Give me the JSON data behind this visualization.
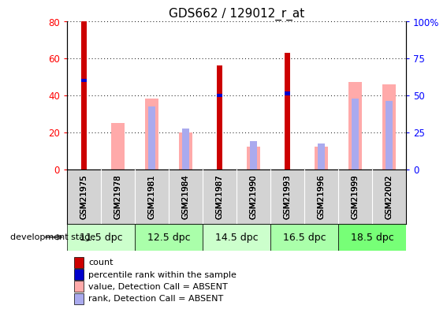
{
  "title": "GDS662 / 129012_r_at",
  "samples": [
    "GSM21975",
    "GSM21978",
    "GSM21981",
    "GSM21984",
    "GSM21987",
    "GSM21990",
    "GSM21993",
    "GSM21996",
    "GSM21999",
    "GSM22002"
  ],
  "count_values": [
    80,
    0,
    0,
    0,
    56,
    0,
    63,
    0,
    0,
    0
  ],
  "percentile_rank": [
    48,
    0,
    0,
    0,
    40,
    0,
    41,
    0,
    0,
    0
  ],
  "absent_value": [
    0,
    25,
    38,
    20,
    0,
    12,
    0,
    12,
    47,
    46
  ],
  "absent_rank": [
    0,
    0,
    34,
    22,
    0,
    15,
    0,
    14,
    38,
    37
  ],
  "dev_stages": [
    {
      "label": "11.5 dpc",
      "color": "#ccffcc"
    },
    {
      "label": "12.5 dpc",
      "color": "#aaffaa"
    },
    {
      "label": "14.5 dpc",
      "color": "#ccffcc"
    },
    {
      "label": "16.5 dpc",
      "color": "#aaffaa"
    },
    {
      "label": "18.5 dpc",
      "color": "#77ff77"
    }
  ],
  "ylim_left": [
    0,
    80
  ],
  "ylim_right": [
    0,
    100
  ],
  "yticks_left": [
    0,
    20,
    40,
    60,
    80
  ],
  "yticks_right": [
    0,
    25,
    50,
    75,
    100
  ],
  "count_color": "#cc0000",
  "rank_color": "#0000cc",
  "absent_value_color": "#ffaaaa",
  "absent_rank_color": "#aaaaee",
  "legend_labels": [
    "count",
    "percentile rank within the sample",
    "value, Detection Call = ABSENT",
    "rank, Detection Call = ABSENT"
  ],
  "legend_colors": [
    "#cc0000",
    "#0000cc",
    "#ffaaaa",
    "#aaaaee"
  ],
  "gsm_bg_color": "#d3d3d3",
  "bar_width": 0.55
}
